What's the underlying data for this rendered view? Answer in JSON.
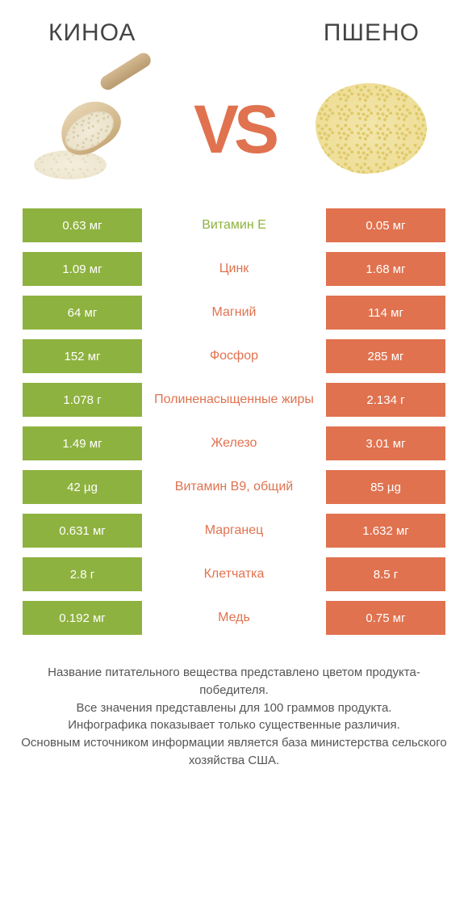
{
  "colors": {
    "green": "#8eb23f",
    "orange": "#e0724f",
    "text": "#444444"
  },
  "type": "comparison-table",
  "left": {
    "title": "КИНОА"
  },
  "right": {
    "title": "ПШЕНО"
  },
  "vs_label": "VS",
  "rows": [
    {
      "label": "Витамин E",
      "left": "0.63 мг",
      "right": "0.05 мг",
      "winner": "left"
    },
    {
      "label": "Цинк",
      "left": "1.09 мг",
      "right": "1.68 мг",
      "winner": "right"
    },
    {
      "label": "Магний",
      "left": "64 мг",
      "right": "114 мг",
      "winner": "right"
    },
    {
      "label": "Фосфор",
      "left": "152 мг",
      "right": "285 мг",
      "winner": "right"
    },
    {
      "label": "Полиненасыщенные жиры",
      "left": "1.078 г",
      "right": "2.134 г",
      "winner": "right"
    },
    {
      "label": "Железо",
      "left": "1.49 мг",
      "right": "3.01 мг",
      "winner": "right"
    },
    {
      "label": "Витамин B9, общий",
      "left": "42 µg",
      "right": "85 µg",
      "winner": "right"
    },
    {
      "label": "Марганец",
      "left": "0.631 мг",
      "right": "1.632 мг",
      "winner": "right"
    },
    {
      "label": "Клетчатка",
      "left": "2.8 г",
      "right": "8.5 г",
      "winner": "right"
    },
    {
      "label": "Медь",
      "left": "0.192 мг",
      "right": "0.75 мг",
      "winner": "right"
    }
  ],
  "footnote_lines": [
    "Название питательного вещества представлено цветом продукта-победителя.",
    "Все значения представлены для 100 граммов продукта.",
    "Инфографика показывает только существенные различия.",
    "Основным источником информации является база министерства сельского хозяйства США."
  ],
  "fontsizes": {
    "title": 30,
    "vs": 84,
    "row": 15,
    "label": 16,
    "footnote": 15
  }
}
